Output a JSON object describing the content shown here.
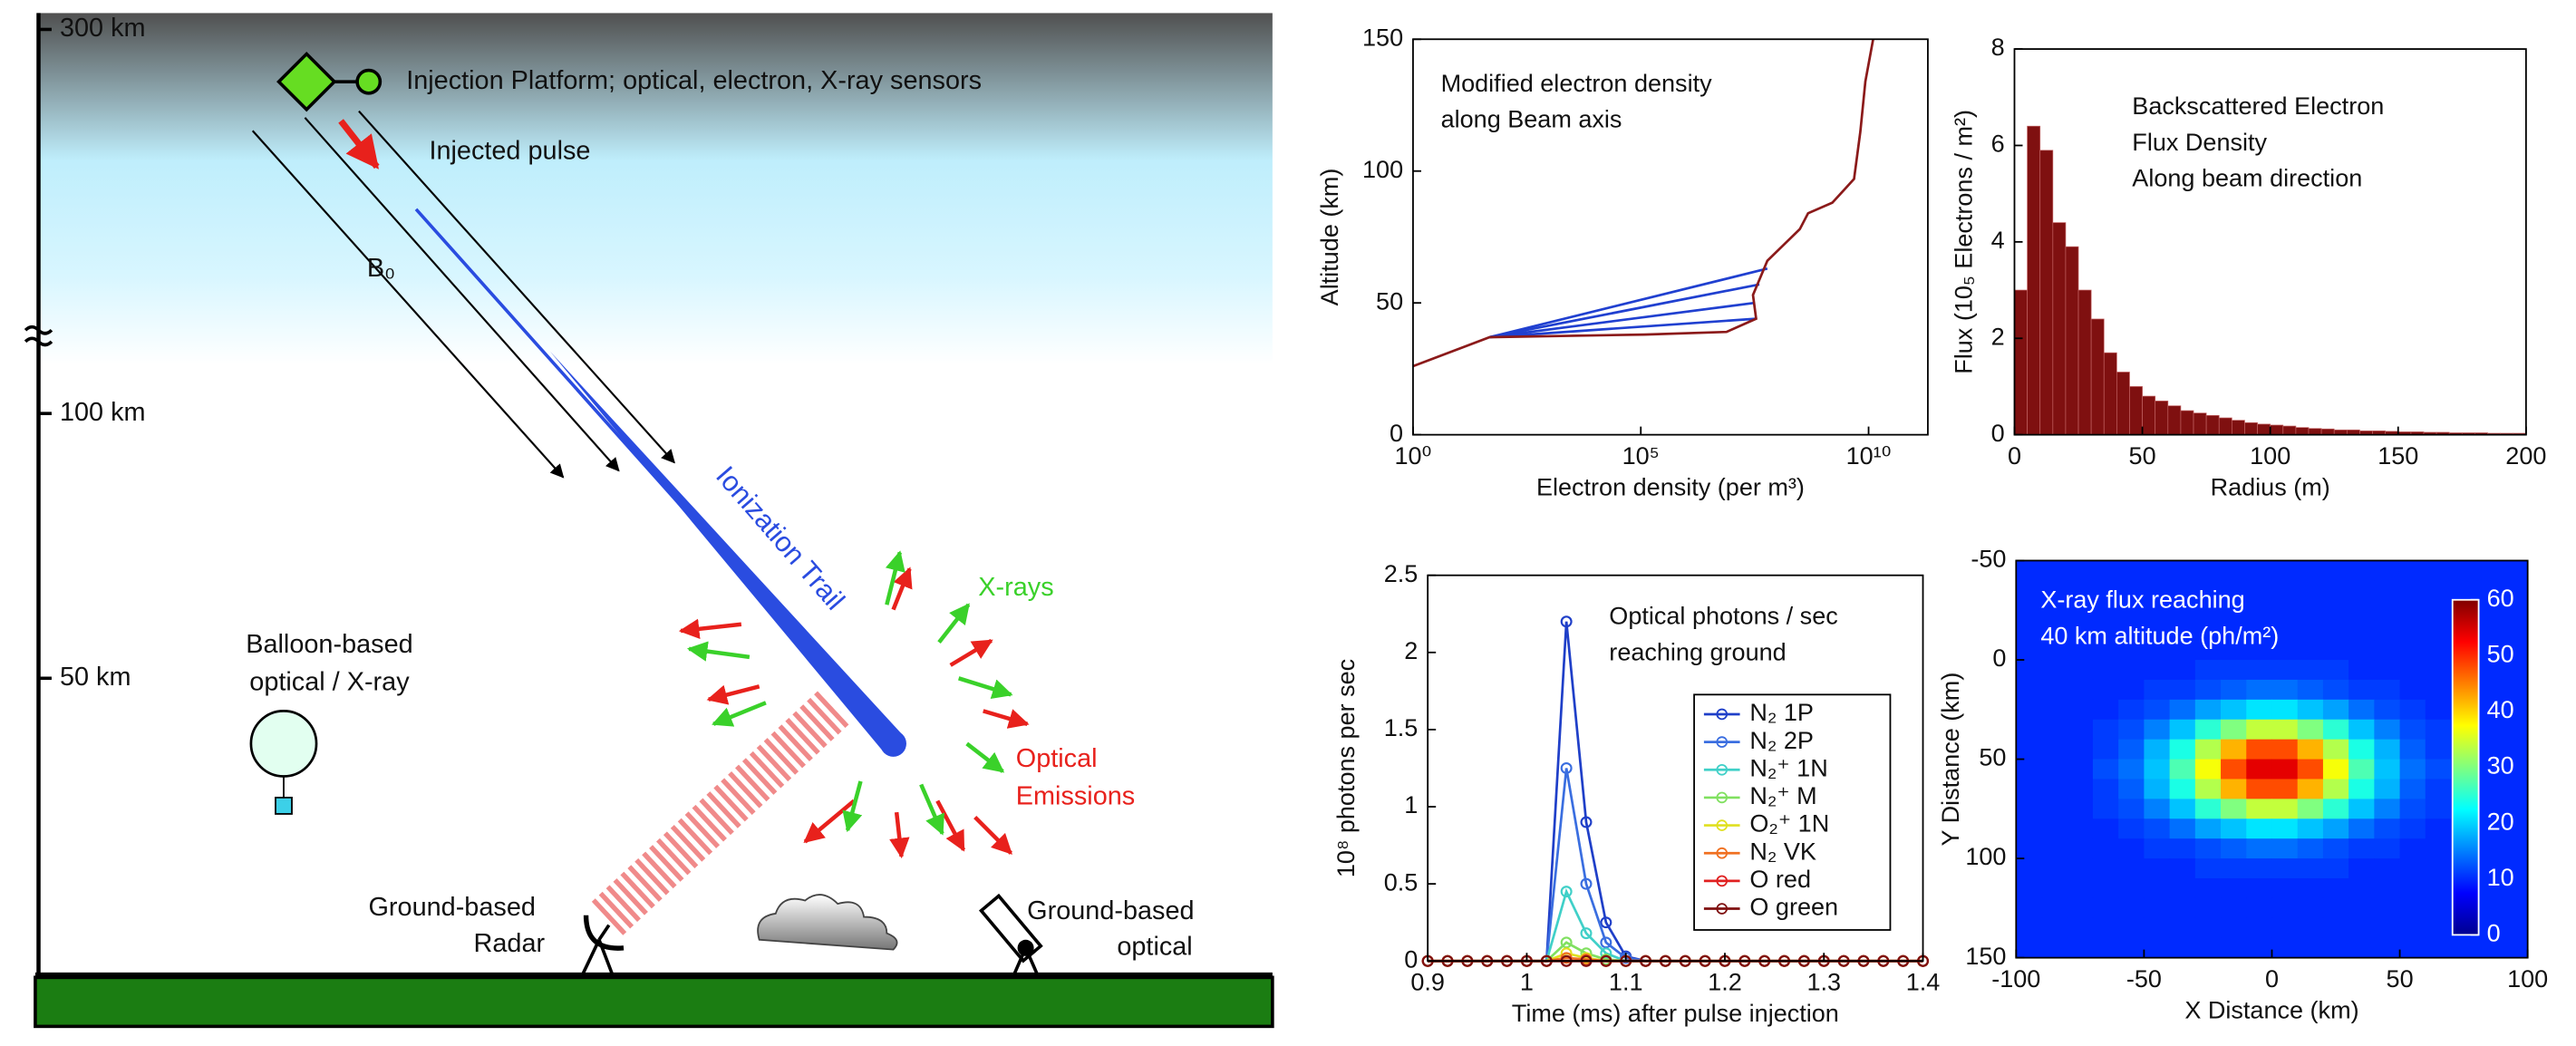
{
  "diagram": {
    "altitudes": [
      "300 km",
      "100 km",
      "50 km"
    ],
    "platform": "Injection Platform; optical, electron, X-ray sensors",
    "pulse": "Injected pulse",
    "field": "B₀",
    "trail": "Ionization Trail",
    "xrays": "X-rays",
    "optical": [
      "Optical",
      "Emissions"
    ],
    "balloon": [
      "Balloon-based",
      "optical / X-ray"
    ],
    "radar": [
      "Ground-based",
      "Radar"
    ],
    "telescope": [
      "Ground-based",
      "optical"
    ]
  },
  "chart_data": [
    {
      "type": "line",
      "annotation": [
        "Modified electron density",
        "along Beam axis"
      ],
      "xlabel": "Electron density (per m³)",
      "ylabel": "Altitude (km)",
      "xscale": "log",
      "xlim": [
        1,
        200000000000
      ],
      "xticks": [
        {
          "value": 1,
          "label": "10⁰"
        },
        {
          "value": 100000,
          "label": "10⁵"
        },
        {
          "value": 10000000000,
          "label": "10¹⁰"
        }
      ],
      "ylim": [
        0,
        150
      ],
      "yticks": [
        0,
        50,
        100,
        150
      ],
      "series": [
        {
          "color": "#2040d0",
          "x": [
            48,
            34000000
          ],
          "values": [
            37,
            44
          ]
        },
        {
          "color": "#2040d0",
          "x": [
            48,
            31000000
          ],
          "values": [
            37,
            50
          ]
        },
        {
          "color": "#2040d0",
          "x": [
            48,
            40000000
          ],
          "values": [
            37,
            57
          ]
        },
        {
          "color": "#2040d0",
          "x": [
            48,
            60000000
          ],
          "values": [
            37,
            63
          ]
        },
        {
          "color": "#8b1a1a",
          "x": [
            1,
            48,
            120000,
            7600000,
            34000000,
            29000000,
            60000000,
            310000000,
            470000000,
            1600000000,
            4800000000,
            6600000000,
            8500000000,
            12600000000
          ],
          "values": [
            26,
            37,
            38,
            39,
            44,
            53,
            66,
            78,
            84,
            88,
            97,
            115,
            134,
            150
          ]
        }
      ]
    },
    {
      "type": "histogram",
      "annotation": [
        "Backscattered Electron",
        "Flux Density",
        "Along beam direction"
      ],
      "xlabel": "Radius (m)",
      "ylabel": "Flux (10₅ Electrons / m²)",
      "color": "#7f1010",
      "xlim": [
        0,
        200
      ],
      "xticks": [
        0,
        50,
        100,
        150,
        200
      ],
      "ylim": [
        0,
        8
      ],
      "yticks": [
        0,
        2,
        4,
        6,
        8
      ],
      "bins": [
        0,
        5,
        10,
        15,
        20,
        25,
        30,
        35,
        40,
        45,
        50,
        55,
        60,
        65,
        70,
        75,
        80,
        85,
        90,
        95,
        100,
        105,
        110,
        115,
        120,
        125,
        130,
        135,
        140,
        145,
        150,
        155,
        160,
        165,
        170,
        175,
        180,
        185,
        190,
        195,
        200
      ],
      "values": [
        3.0,
        6.4,
        5.9,
        4.4,
        3.9,
        3.0,
        2.4,
        1.7,
        1.3,
        1.0,
        0.8,
        0.7,
        0.6,
        0.5,
        0.45,
        0.4,
        0.35,
        0.3,
        0.25,
        0.22,
        0.2,
        0.18,
        0.15,
        0.13,
        0.12,
        0.1,
        0.1,
        0.08,
        0.08,
        0.07,
        0.06,
        0.06,
        0.05,
        0.05,
        0.04,
        0.04,
        0.04,
        0.03,
        0.03,
        0.03
      ]
    },
    {
      "type": "line",
      "markers": true,
      "legend": "right",
      "annotation": [
        "Optical photons / sec",
        "reaching ground"
      ],
      "xlabel": "Time (ms) after pulse injection",
      "ylabel": "10⁸ photons per sec",
      "xlim": [
        0.9,
        1.4
      ],
      "xticks": [
        0.9,
        1,
        1.1,
        1.2,
        1.3,
        1.4
      ],
      "ylim": [
        0,
        2.5
      ],
      "yticks": [
        0,
        0.5,
        1,
        1.5,
        2,
        2.5
      ],
      "x": [
        0.9,
        0.92,
        0.94,
        0.96,
        0.98,
        1,
        1.02,
        1.04,
        1.06,
        1.08,
        1.1,
        1.12,
        1.14,
        1.16,
        1.18,
        1.2,
        1.22,
        1.24,
        1.26,
        1.28,
        1.3,
        1.32,
        1.34,
        1.36,
        1.38,
        1.4
      ],
      "series": [
        {
          "name": "N₂ 1P",
          "color": "#1f3fc8",
          "values": [
            0,
            0,
            0,
            0,
            0,
            0,
            0,
            2.2,
            0.9,
            0.25,
            0.03,
            0,
            0,
            0,
            0,
            0,
            0,
            0,
            0,
            0,
            0,
            0,
            0,
            0,
            0,
            0
          ]
        },
        {
          "name": "N₂ 2P",
          "color": "#3a6ee0",
          "values": [
            0,
            0,
            0,
            0,
            0,
            0,
            0,
            1.25,
            0.5,
            0.12,
            0.02,
            0,
            0,
            0,
            0,
            0,
            0,
            0,
            0,
            0,
            0,
            0,
            0,
            0,
            0,
            0
          ]
        },
        {
          "name": "N₂⁺ 1N",
          "color": "#40d0c8",
          "values": [
            0,
            0,
            0,
            0,
            0,
            0,
            0,
            0.45,
            0.18,
            0.05,
            0,
            0,
            0,
            0,
            0,
            0,
            0,
            0,
            0,
            0,
            0,
            0,
            0,
            0,
            0,
            0
          ]
        },
        {
          "name": "N₂⁺ M",
          "color": "#80e060",
          "values": [
            0,
            0,
            0,
            0,
            0,
            0,
            0,
            0.12,
            0.05,
            0.01,
            0,
            0,
            0,
            0,
            0,
            0,
            0,
            0,
            0,
            0,
            0,
            0,
            0,
            0,
            0,
            0
          ]
        },
        {
          "name": "O₂⁺ 1N",
          "color": "#e0e020",
          "values": [
            0,
            0,
            0,
            0,
            0,
            0,
            0,
            0.05,
            0.02,
            0,
            0,
            0,
            0,
            0,
            0,
            0,
            0,
            0,
            0,
            0,
            0,
            0,
            0,
            0,
            0,
            0
          ]
        },
        {
          "name": "N₂ VK",
          "color": "#f07020",
          "values": [
            0,
            0,
            0,
            0,
            0,
            0,
            0,
            0.02,
            0.01,
            0,
            0,
            0,
            0,
            0,
            0,
            0,
            0,
            0,
            0,
            0,
            0,
            0,
            0,
            0,
            0,
            0
          ]
        },
        {
          "name": "O red",
          "color": "#e02020",
          "values": [
            0,
            0,
            0,
            0,
            0,
            0,
            0,
            0,
            0,
            0,
            0,
            0,
            0,
            0,
            0,
            0,
            0,
            0,
            0,
            0,
            0,
            0,
            0,
            0,
            0,
            0
          ]
        },
        {
          "name": "O green",
          "color": "#7f1010",
          "values": [
            0,
            0,
            0,
            0,
            0,
            0,
            0,
            0,
            0,
            0,
            0,
            0,
            0,
            0,
            0,
            0,
            0,
            0,
            0,
            0,
            0,
            0,
            0,
            0,
            0,
            0
          ]
        }
      ]
    },
    {
      "type": "heatmap",
      "annotation": [
        "X-ray flux reaching",
        "40 km altitude (ph/m²)"
      ],
      "xlabel": "X Distance (km)",
      "ylabel": "Y Distance (km)",
      "xlim": [
        -100,
        100
      ],
      "xticks": [
        -100,
        -50,
        0,
        50,
        100
      ],
      "ylim": [
        -50,
        150
      ],
      "yreverse": true,
      "yticks": [
        -50,
        0,
        50,
        100,
        150
      ],
      "clim": [
        0,
        60
      ],
      "cticks": [
        0,
        10,
        20,
        30,
        40,
        50,
        60
      ],
      "xbins": [
        -100,
        -90,
        -80,
        -70,
        -60,
        -50,
        -40,
        -30,
        -20,
        -10,
        0,
        10,
        20,
        30,
        40,
        50,
        60,
        70,
        80,
        90,
        100
      ],
      "ybins": [
        -50,
        -40,
        -30,
        -20,
        -10,
        0,
        10,
        20,
        30,
        40,
        50,
        60,
        70,
        80,
        90,
        100,
        110,
        120,
        130,
        140,
        150
      ],
      "z": [
        [
          10,
          10,
          10,
          10,
          10,
          10,
          10,
          10,
          10,
          10,
          10,
          10,
          10,
          10,
          10,
          10,
          10,
          10,
          10,
          10
        ],
        [
          10,
          10,
          10,
          10,
          10,
          10,
          10,
          10,
          10,
          10,
          10,
          10,
          10,
          10,
          10,
          10,
          10,
          10,
          10,
          10
        ],
        [
          10,
          10,
          10,
          10,
          10,
          10,
          10,
          10,
          10,
          10,
          10,
          10,
          10,
          10,
          10,
          10,
          10,
          10,
          10,
          10
        ],
        [
          10,
          10,
          10,
          10,
          10,
          10,
          10,
          10,
          10,
          10,
          10,
          10,
          10,
          10,
          10,
          10,
          10,
          10,
          10,
          10
        ],
        [
          10,
          10,
          10,
          10,
          10,
          10,
          10,
          10,
          10,
          10,
          10,
          10,
          10,
          10,
          10,
          10,
          10,
          10,
          10,
          10
        ],
        [
          10,
          10,
          10,
          10,
          10,
          10,
          10,
          11,
          11,
          11,
          11,
          11,
          11,
          10,
          10,
          10,
          10,
          10,
          10,
          10
        ],
        [
          10,
          10,
          10,
          10,
          10,
          11,
          11,
          12,
          13,
          14,
          14,
          13,
          12,
          11,
          11,
          10,
          10,
          10,
          10,
          10
        ],
        [
          10,
          10,
          10,
          10,
          11,
          12,
          14,
          17,
          19,
          21,
          21,
          19,
          17,
          14,
          12,
          11,
          10,
          10,
          10,
          10
        ],
        [
          10,
          10,
          10,
          11,
          12,
          15,
          19,
          25,
          30,
          34,
          34,
          30,
          25,
          19,
          15,
          12,
          11,
          10,
          10,
          10
        ],
        [
          10,
          10,
          10,
          11,
          13,
          18,
          24,
          33,
          42,
          48,
          48,
          42,
          33,
          24,
          18,
          13,
          11,
          10,
          10,
          10
        ],
        [
          10,
          10,
          10,
          12,
          14,
          19,
          27,
          37,
          48,
          54,
          54,
          48,
          37,
          27,
          19,
          14,
          12,
          10,
          10,
          10
        ],
        [
          10,
          10,
          10,
          11,
          13,
          18,
          24,
          33,
          42,
          48,
          48,
          42,
          33,
          24,
          18,
          13,
          11,
          10,
          10,
          10
        ],
        [
          10,
          10,
          10,
          11,
          12,
          15,
          19,
          25,
          30,
          34,
          34,
          30,
          25,
          19,
          15,
          12,
          11,
          10,
          10,
          10
        ],
        [
          10,
          10,
          10,
          10,
          11,
          12,
          14,
          17,
          19,
          21,
          21,
          19,
          17,
          14,
          12,
          11,
          10,
          10,
          10,
          10
        ],
        [
          10,
          10,
          10,
          10,
          10,
          11,
          11,
          12,
          13,
          14,
          14,
          13,
          12,
          11,
          11,
          10,
          10,
          10,
          10,
          10
        ],
        [
          10,
          10,
          10,
          10,
          10,
          10,
          10,
          11,
          11,
          11,
          11,
          11,
          11,
          10,
          10,
          10,
          10,
          10,
          10,
          10
        ],
        [
          10,
          10,
          10,
          10,
          10,
          10,
          10,
          10,
          10,
          10,
          10,
          10,
          10,
          10,
          10,
          10,
          10,
          10,
          10,
          10
        ],
        [
          10,
          10,
          10,
          10,
          10,
          10,
          10,
          10,
          10,
          10,
          10,
          10,
          10,
          10,
          10,
          10,
          10,
          10,
          10,
          10
        ],
        [
          10,
          10,
          10,
          10,
          10,
          10,
          10,
          10,
          10,
          10,
          10,
          10,
          10,
          10,
          10,
          10,
          10,
          10,
          10,
          10
        ],
        [
          10,
          10,
          10,
          10,
          10,
          10,
          10,
          10,
          10,
          10,
          10,
          10,
          10,
          10,
          10,
          10,
          10,
          10,
          10,
          10
        ]
      ]
    }
  ]
}
